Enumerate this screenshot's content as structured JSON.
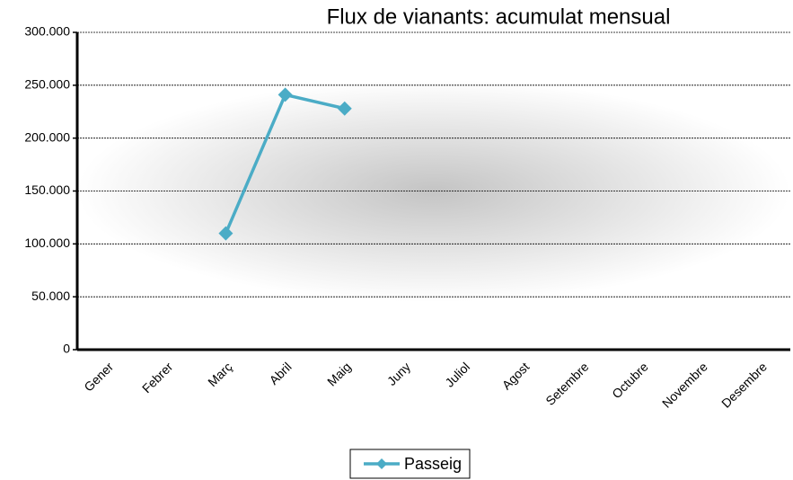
{
  "chart_data": {
    "type": "line",
    "title": "Flux de vianants: acumulat mensual",
    "categories": [
      "Gener",
      "Febrer",
      "Març",
      "Abril",
      "Maig",
      "Juny",
      "Juliol",
      "Agost",
      "Setembre",
      "Octubre",
      "Novembre",
      "Desembre"
    ],
    "series": [
      {
        "name": "Passeig",
        "color": "#4bacc6",
        "values": [
          null,
          null,
          110000,
          241000,
          228000,
          null,
          null,
          null,
          null,
          null,
          null,
          null
        ]
      }
    ],
    "ylim": [
      0,
      300000
    ],
    "yticks": [
      0,
      {
        "value": 50000,
        "label": "50.000"
      },
      {
        "value": 100000,
        "label": "100.000"
      },
      {
        "value": 150000,
        "label": "150.000"
      },
      {
        "value": 200000,
        "label": "200.000"
      },
      {
        "value": 250000,
        "label": "250.000"
      },
      {
        "value": 300000,
        "label": "300.000"
      }
    ],
    "grid": true,
    "legend": "bottom"
  }
}
